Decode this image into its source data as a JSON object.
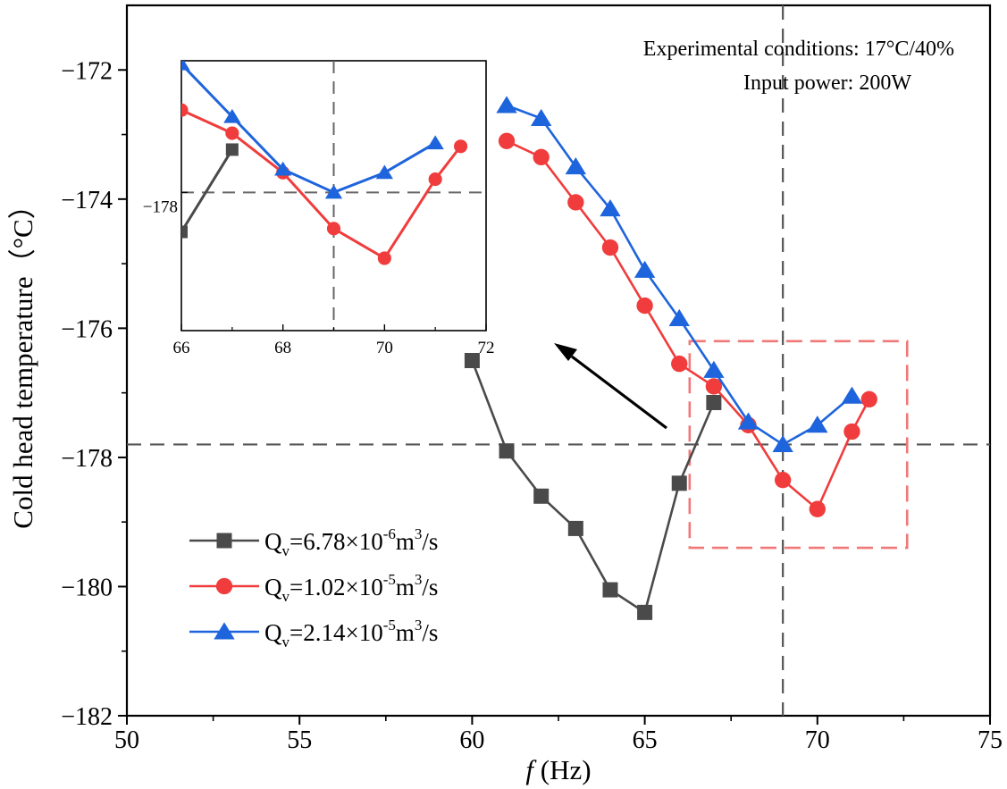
{
  "chart_data": {
    "type": "line",
    "xlabel": "f (Hz)",
    "xlabel_var": "f",
    "xlabel_unit": "(Hz)",
    "ylabel": "Cold head temperature（°C）",
    "xlim": [
      50,
      75
    ],
    "ylim": [
      -182,
      -171
    ],
    "xticks": [
      "50",
      "55",
      "60",
      "65",
      "70",
      "75"
    ],
    "yticks": [
      "−172",
      "−174",
      "−176",
      "−178",
      "−180",
      "−182"
    ],
    "ytick_values": [
      -172,
      -174,
      -176,
      -178,
      -180,
      -182
    ],
    "xtick_values": [
      50,
      55,
      60,
      65,
      70,
      75
    ],
    "annotations": [
      "Experimental conditions: 17°C/40%",
      "Input power: 200W"
    ],
    "reference_lines": {
      "x": 69,
      "y": -177.8
    },
    "zoom_box": {
      "x": [
        66.3,
        72.6
      ],
      "y": [
        -179.4,
        -176.2
      ]
    },
    "series": [
      {
        "name": "Qv=6.78×10-6m3/s",
        "legend_main": "Q",
        "legend_sub": "v",
        "legend_text": "=6.78×10",
        "legend_sup": "-6",
        "legend_unit": "m",
        "legend_unit_sup": "3",
        "legend_tail": "/s",
        "color": "#4a4a4a",
        "marker": "square",
        "x": [
          60,
          61,
          62,
          63,
          64,
          65,
          66,
          67
        ],
        "y": [
          -176.5,
          -177.9,
          -178.6,
          -179.1,
          -180.05,
          -180.4,
          -178.4,
          -177.15
        ]
      },
      {
        "name": "Qv=1.02×10-5m3/s",
        "legend_main": "Q",
        "legend_sub": "v",
        "legend_text": "=1.02×10",
        "legend_sup": "-5",
        "legend_unit": "m",
        "legend_unit_sup": "3",
        "legend_tail": "/s",
        "color": "#f03c3c",
        "marker": "circle",
        "x": [
          61,
          62,
          63,
          64,
          65,
          66,
          67,
          68,
          69,
          70,
          71,
          71.5
        ],
        "y": [
          -173.1,
          -173.35,
          -174.05,
          -174.75,
          -175.65,
          -176.55,
          -176.9,
          -177.5,
          -178.35,
          -178.8,
          -177.6,
          -177.1
        ]
      },
      {
        "name": "Qv=2.14×10-5m3/s",
        "legend_main": "Q",
        "legend_sub": "v",
        "legend_text": "=2.14×10",
        "legend_sup": "-5",
        "legend_unit": "m",
        "legend_unit_sup": "3",
        "legend_tail": "/s",
        "color": "#1e64dc",
        "marker": "triangle",
        "x": [
          61,
          62,
          63,
          64,
          65,
          66,
          67,
          68,
          69,
          70,
          71
        ],
        "y": [
          -172.55,
          -172.75,
          -173.5,
          -174.15,
          -175.1,
          -175.85,
          -176.65,
          -177.45,
          -177.8,
          -177.5,
          -177.05
        ]
      }
    ],
    "inset": {
      "xlim": [
        66,
        72
      ],
      "ylim": [
        -179.9,
        -175.8
      ],
      "xticks": [
        "66",
        "68",
        "70",
        "72"
      ],
      "xtick_values": [
        66,
        68,
        70,
        72
      ],
      "yticks": [
        "−178"
      ],
      "ytick_values": [
        -177.8
      ],
      "reference_lines": {
        "x": 69,
        "y": -177.8
      }
    }
  }
}
